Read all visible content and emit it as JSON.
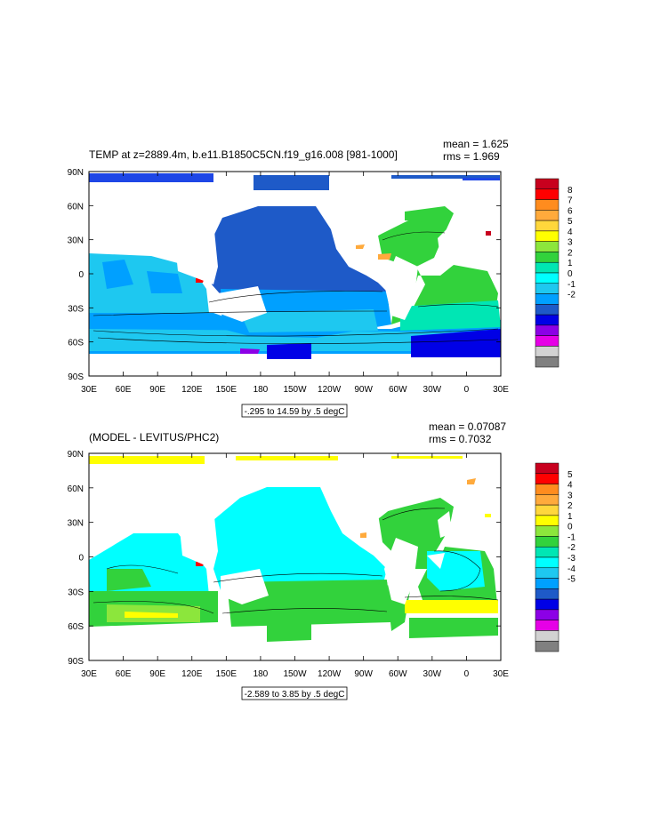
{
  "panels": [
    {
      "title": "TEMP at z=2889.4m, b.e11.B1850C5CN.f19_g16.008 [981-1000]",
      "mean_text": "mean = 1.625",
      "rms_text": "rms = 1.969",
      "range_text": "-.295 to 14.59 by .5 degC",
      "colorbar_labels": [
        "8",
        "7",
        "6",
        "5",
        "4",
        "3",
        "2",
        "1",
        "0",
        "-1",
        "-2"
      ],
      "colorbar_colors": [
        "#c8001e",
        "#ff0000",
        "#ff8c1e",
        "#ffaa3c",
        "#ffd73c",
        "#ffff00",
        "#8ce63c",
        "#32d23c",
        "#00e6b4",
        "#00ffff",
        "#1ec8f0",
        "#00a0ff",
        "#1e5ac8",
        "#0000e6",
        "#8c00e6",
        "#e600e6",
        "#d2d2d2",
        "#808080"
      ]
    },
    {
      "title": "(MODEL - LEVITUS/PHC2)",
      "mean_text": "mean = 0.07087",
      "rms_text": "rms = 0.7032",
      "range_text": "-2.589 to 3.85 by .5 degC",
      "colorbar_labels": [
        "5",
        "4",
        "3",
        "2",
        "1",
        "0",
        "-1",
        "-2",
        "-3",
        "-4",
        "-5"
      ],
      "colorbar_colors": [
        "#c8001e",
        "#ff0000",
        "#ff8c1e",
        "#ffaa3c",
        "#ffd73c",
        "#ffff00",
        "#8ce63c",
        "#32d23c",
        "#00e6b4",
        "#00ffff",
        "#1ec8f0",
        "#00a0ff",
        "#1e5ac8",
        "#0000e6",
        "#8c00e6",
        "#e600e6",
        "#d2d2d2",
        "#808080"
      ]
    }
  ],
  "axes": {
    "lat_labels": [
      "90N",
      "60N",
      "30N",
      "0",
      "30S",
      "60S",
      "90S"
    ],
    "lon_labels": [
      "30E",
      "60E",
      "90E",
      "120E",
      "150E",
      "180",
      "150W",
      "120W",
      "90W",
      "60W",
      "30W",
      "0",
      "30E"
    ]
  }
}
